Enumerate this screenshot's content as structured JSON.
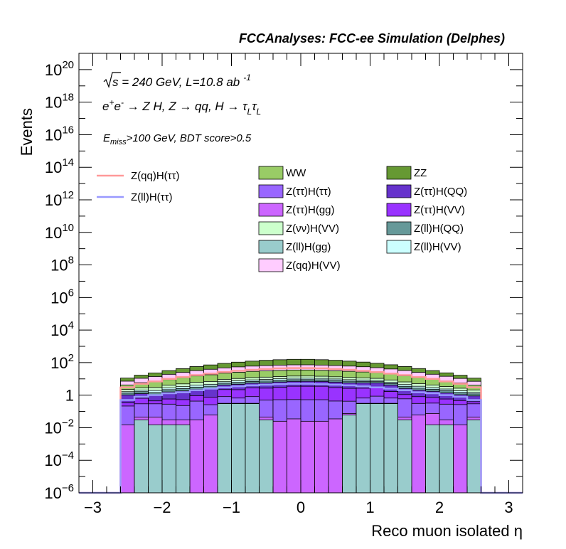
{
  "chart_data": {
    "type": "bar",
    "title": "FCCAnalyses: FCC-ee Simulation (Delphes)",
    "xlabel": "Reco muon isolated η",
    "ylabel": "Events",
    "xlim": [
      -3.2,
      3.2
    ],
    "ylim": [
      1e-06,
      1e+21
    ],
    "yscale": "log",
    "xticks": [
      -3,
      -2,
      -1,
      0,
      1,
      2,
      3
    ],
    "xtick_labels": [
      "−3",
      "−2",
      "−1",
      "0",
      "1",
      "2",
      "3"
    ],
    "yticks": [
      {
        "value": 1e-06,
        "base": "10",
        "exp": "−6"
      },
      {
        "value": 0.0001,
        "base": "10",
        "exp": "−4"
      },
      {
        "value": 0.01,
        "base": "10",
        "exp": "−2"
      },
      {
        "value": 1,
        "base": "1",
        "exp": ""
      },
      {
        "value": 100.0,
        "base": "10",
        "exp": "2"
      },
      {
        "value": 10000.0,
        "base": "10",
        "exp": "4"
      },
      {
        "value": 1000000.0,
        "base": "10",
        "exp": "6"
      },
      {
        "value": 100000000.0,
        "base": "10",
        "exp": "8"
      },
      {
        "value": 10000000000.0,
        "base": "10",
        "exp": "10"
      },
      {
        "value": 1000000000000.0,
        "base": "10",
        "exp": "12"
      },
      {
        "value": 100000000000000.0,
        "base": "10",
        "exp": "14"
      },
      {
        "value": 1e+16,
        "base": "10",
        "exp": "16"
      },
      {
        "value": 1e+18,
        "base": "10",
        "exp": "18"
      },
      {
        "value": 1e+20,
        "base": "10",
        "exp": "20"
      }
    ],
    "annotations": {
      "energy": {
        "sqrt": "s",
        "rest": " = 240 GeV, L=10.8 ab",
        "exp": "-1"
      },
      "process": {
        "e": "e",
        "eplus": "+",
        "eminus": "-",
        "arrow1": " → Z H, Z  → qq, H  → ",
        "tau": "τ",
        "sub": "L"
      },
      "cut": {
        "e": "E",
        "sub": "miss",
        "rest": ">100 GeV, BDT score>0.5"
      }
    },
    "legend_position": "top",
    "bin_edges": [
      -2.6,
      -2.4,
      -2.2,
      -2.0,
      -1.8,
      -1.6,
      -1.4,
      -1.2,
      -1.0,
      -0.8,
      -0.6,
      -0.4,
      -0.2,
      0.0,
      0.2,
      0.4,
      0.6,
      0.8,
      1.0,
      1.2,
      1.4,
      1.6,
      1.8,
      2.0,
      2.2,
      2.4,
      2.6
    ],
    "stacked_backgrounds": [
      {
        "name": "Z(ll)H(gg)",
        "color": "#99cccc",
        "values": [
          0,
          0.03,
          0.015,
          0.015,
          0.015,
          0,
          0,
          0.3,
          0.3,
          0.3,
          0.03,
          0,
          0,
          0,
          0,
          0,
          0.06,
          0.3,
          0.3,
          0.3,
          0.03,
          0,
          0.015,
          0.015,
          0,
          0.03
        ]
      },
      {
        "name": "Z(ττ)H(gg)",
        "color": "#cc66ff",
        "values": [
          0.015,
          0.015,
          0.03,
          0.015,
          0.015,
          0.03,
          0.06,
          0.015,
          0.015,
          0.015,
          0.015,
          0.025,
          0.035,
          0.025,
          0.025,
          0.035,
          0.015,
          0.015,
          0.015,
          0.015,
          0.015,
          0.06,
          0.06,
          0.015,
          0.015,
          0.015
        ]
      },
      {
        "name": "Z(ττ)H(ττ)",
        "color": "#9966ff",
        "values": [
          0.2,
          0.25,
          0.25,
          0.25,
          0.2,
          0.4,
          0.2,
          0.5,
          0.35,
          0.5,
          0.45,
          0.5,
          0.5,
          0.5,
          0.5,
          0.4,
          0.35,
          0.35,
          0.55,
          0.35,
          0.55,
          0.25,
          0.25,
          0.25,
          0.25,
          0.25
        ]
      },
      {
        "name": "Z(ττ)H(VV)",
        "color": "#9933ff",
        "values": [
          0.12,
          0.35,
          0.15,
          0.3,
          0.3,
          0.5,
          0.5,
          1.4,
          1.5,
          2.0,
          2.2,
          2.5,
          3.0,
          3.0,
          3.0,
          2.5,
          2.2,
          2.0,
          2.0,
          1.0,
          0.5,
          0.5,
          0.4,
          0.3,
          0.2,
          0.1
        ]
      },
      {
        "name": "Z(ττ)H(QQ)",
        "color": "#6633cc",
        "values": [
          0.7,
          0.6,
          0.5,
          1.0,
          1.3,
          1.3,
          1.8,
          2.0,
          2.5,
          2.6,
          3.0,
          3.4,
          3.5,
          3.6,
          3.5,
          3.4,
          3.0,
          3.0,
          2.7,
          2.5,
          1.5,
          1.2,
          1.0,
          0.8,
          0.6,
          0.5
        ]
      },
      {
        "name": "Z(ll)H(QQ)",
        "color": "#669999",
        "values": [
          0.3,
          0.4,
          0.5,
          0.6,
          0.7,
          0.9,
          1.0,
          1.2,
          1.4,
          1.6,
          1.7,
          1.8,
          1.9,
          1.9,
          1.8,
          1.7,
          1.6,
          1.4,
          1.2,
          1.0,
          0.9,
          0.7,
          0.6,
          0.5,
          0.4,
          0.3
        ]
      },
      {
        "name": "Z(ll)H(VV)",
        "color": "#ccffff",
        "values": [
          0.3,
          0.4,
          0.5,
          0.6,
          0.8,
          1.0,
          1.1,
          1.3,
          1.5,
          1.7,
          1.8,
          1.9,
          2.0,
          2.0,
          1.9,
          1.8,
          1.7,
          1.5,
          1.3,
          1.1,
          1.0,
          0.8,
          0.6,
          0.5,
          0.4,
          0.3
        ]
      },
      {
        "name": "Z(νν)H(VV)",
        "color": "#ccffcc",
        "values": [
          0.6,
          0.8,
          1.0,
          1.3,
          1.6,
          2.0,
          2.3,
          2.7,
          3.0,
          3.3,
          3.6,
          3.8,
          4.0,
          4.0,
          3.8,
          3.6,
          3.3,
          3.0,
          2.7,
          2.3,
          2.0,
          1.6,
          1.3,
          1.0,
          0.8,
          0.6
        ]
      },
      {
        "name": "WW",
        "color": "#99cc66",
        "values": [
          2.0,
          3.0,
          4.0,
          5.0,
          7.0,
          9.0,
          11.0,
          13.0,
          15.0,
          17.0,
          18.0,
          19.0,
          20.0,
          20.0,
          19.0,
          18.0,
          17.0,
          15.0,
          13.0,
          11.0,
          9.0,
          7.0,
          5.0,
          4.0,
          3.0,
          2.0
        ]
      },
      {
        "name": "Z(qq)H(VV)",
        "color": "#ffccff",
        "values": [
          3.0,
          5.0,
          7.0,
          10.0,
          13.0,
          17.0,
          21.0,
          25.0,
          29.0,
          32.0,
          35.0,
          37.0,
          38.0,
          38.0,
          37.0,
          35.0,
          32.0,
          29.0,
          25.0,
          21.0,
          17.0,
          13.0,
          10.0,
          7.0,
          5.0,
          3.0
        ]
      },
      {
        "name": "ZZ",
        "color": "#669933",
        "values": [
          4.0,
          6.0,
          9.0,
          13.0,
          18.0,
          25.0,
          33.0,
          42.0,
          52.0,
          62.0,
          72.0,
          80.0,
          86.0,
          86.0,
          80.0,
          72.0,
          62.0,
          52.0,
          42.0,
          33.0,
          25.0,
          18.0,
          13.0,
          9.0,
          6.0,
          4.0
        ]
      }
    ],
    "overlay_lines": [
      {
        "name": "Z(qq)H(ττ)",
        "color": "#ff9999",
        "values": [
          3.0,
          5.0,
          7.0,
          10.0,
          13.0,
          17.0,
          21.0,
          26.0,
          31.0,
          36.0,
          40.0,
          44.0,
          46.0,
          46.0,
          44.0,
          40.0,
          36.0,
          31.0,
          26.0,
          21.0,
          17.0,
          13.0,
          10.0,
          7.0,
          5.0,
          3.0
        ]
      },
      {
        "name": "Z(ll)H(ττ)",
        "color": "#9999ff",
        "values": [
          0.5,
          0.8,
          1.0,
          1.3,
          1.5,
          2.0,
          2.5,
          3.0,
          3.5,
          4.0,
          4.4,
          4.7,
          5.0,
          5.0,
          4.7,
          4.4,
          4.0,
          3.5,
          3.0,
          2.5,
          2.0,
          1.5,
          1.3,
          1.0,
          0.8,
          0.5
        ]
      }
    ],
    "legend_columns": [
      [
        "WW",
        "Z(ττ)H(ττ)",
        "Z(ττ)H(gg)",
        "Z(νν)H(VV)",
        "Z(ll)H(gg)",
        "Z(qq)H(VV)"
      ],
      [
        "ZZ",
        "Z(ττ)H(QQ)",
        "Z(ττ)H(VV)",
        "Z(ll)H(QQ)",
        "Z(ll)H(VV)"
      ]
    ]
  }
}
